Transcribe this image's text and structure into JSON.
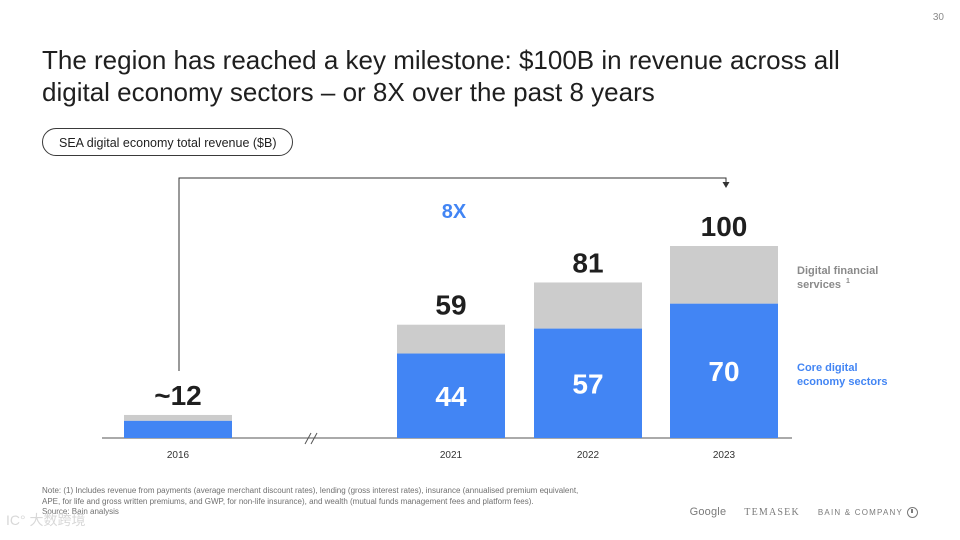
{
  "page_number": "30",
  "title": "The region has reached a key milestone: $100B in revenue across all digital economy sectors – or 8X over the past 8 years",
  "chart_label": "SEA digital economy total revenue ($B)",
  "note_line1": "Note: (1) Includes revenue from payments (average merchant discount rates), lending (gross interest rates), insurance (annualised premium equivalent,",
  "note_line2": "APE, for life and gross written premiums, and GWP, for non-life insurance), and wealth (mutual funds management fees and platform fees).",
  "source": "Source: Bain analysis",
  "logos": {
    "google": "Google",
    "temasek": "TEMASEK",
    "bain": "BAIN & COMPANY"
  },
  "watermark": "IC° 大数跨境",
  "colors": {
    "core": "#4285f4",
    "dfs": "#cccccc",
    "growth": "#4285f4",
    "axis": "#555555"
  },
  "chart_data": {
    "type": "bar",
    "stacked": true,
    "categories": [
      "2016",
      "2021",
      "2022",
      "2023"
    ],
    "series": [
      {
        "name": "Core digital economy sectors",
        "values": [
          9,
          44,
          57,
          70
        ],
        "labels": [
          "",
          "44",
          "57",
          "70"
        ]
      },
      {
        "name": "Digital financial services",
        "name_sup": "1",
        "values": [
          3,
          15,
          24,
          30
        ]
      }
    ],
    "totals": [
      "~12",
      "59",
      "81",
      "100"
    ],
    "growth_label": "8X",
    "axis_break_between": [
      "2016",
      "2021"
    ],
    "ylim": [
      0,
      100
    ],
    "legend": "right"
  }
}
